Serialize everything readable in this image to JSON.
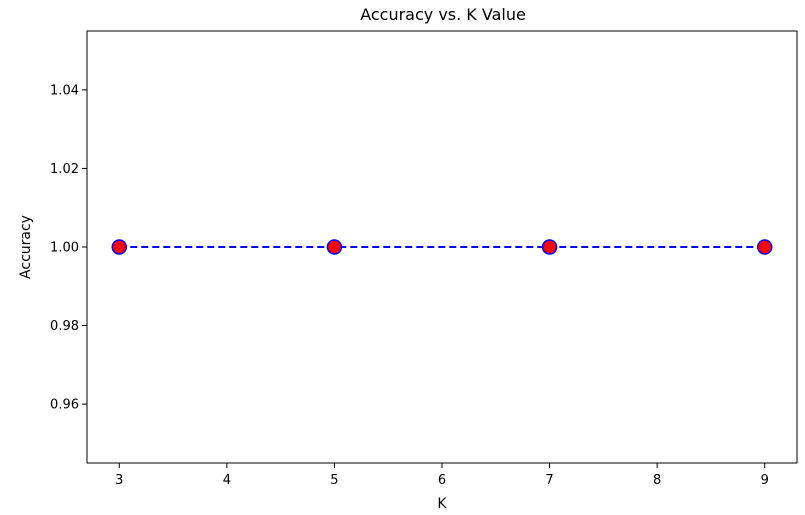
{
  "chart_data": {
    "type": "line",
    "title": "Accuracy vs. K Value",
    "xlabel": "K",
    "ylabel": "Accuracy",
    "x": [
      3,
      5,
      7,
      9
    ],
    "series": [
      {
        "values": [
          1.0,
          1.0,
          1.0,
          1.0
        ]
      }
    ],
    "xlim": [
      2.7,
      9.3
    ],
    "ylim": [
      0.945,
      1.055
    ],
    "x_ticks": [
      "3",
      "4",
      "5",
      "6",
      "7",
      "8",
      "9"
    ],
    "x_tick_values": [
      3,
      4,
      5,
      6,
      7,
      8,
      9
    ],
    "y_ticks": [
      "0.96",
      "0.98",
      "1.00",
      "1.02",
      "1.04"
    ],
    "y_tick_values": [
      0.96,
      0.98,
      1.0,
      1.02,
      1.04
    ],
    "grid": false,
    "line_style": "dashed",
    "line_color": "#0000ff",
    "marker_face_color": "#ff0000",
    "marker_edge_color": "#0000ff"
  }
}
